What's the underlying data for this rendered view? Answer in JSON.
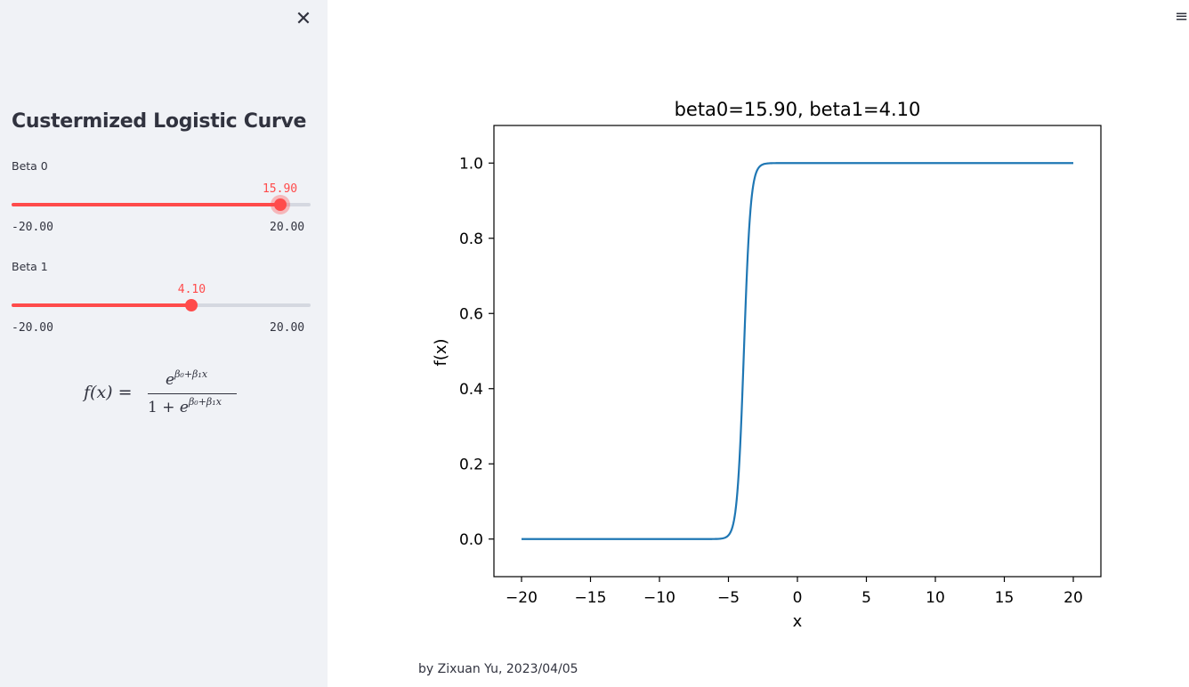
{
  "sidebar": {
    "close_icon": "close-icon",
    "title": "Custermized Logistic Curve",
    "sliders": [
      {
        "label": "Beta 0",
        "value": "15.90",
        "numeric_value": 15.9,
        "min_label": "-20.00",
        "max_label": "20.00",
        "min": -20,
        "max": 20
      },
      {
        "label": "Beta 1",
        "value": "4.10",
        "numeric_value": 4.1,
        "min_label": "-20.00",
        "max_label": "20.00",
        "min": -20,
        "max": 20
      }
    ],
    "formula": {
      "lhs": "f(x)",
      "eq": "=",
      "num_base": "e",
      "exponent": "β₀+β₁x",
      "den_prefix": "1 + ",
      "den_base": "e"
    }
  },
  "main": {
    "menu_icon": "hamburger-menu-icon",
    "footer": "by Zixuan Yu, 2023/04/05"
  },
  "chart_data": {
    "type": "line",
    "title": "beta0=15.90, beta1=4.10",
    "xlabel": "x",
    "ylabel": "f(x)",
    "xlim": [
      -22,
      22
    ],
    "ylim": [
      -0.1,
      1.1
    ],
    "xticks": [
      -20,
      -15,
      -10,
      -5,
      0,
      5,
      10,
      15,
      20
    ],
    "xtick_labels": [
      "−20",
      "−15",
      "−10",
      "−5",
      "0",
      "5",
      "10",
      "15",
      "20"
    ],
    "yticks": [
      0.0,
      0.2,
      0.4,
      0.6,
      0.8,
      1.0
    ],
    "ytick_labels": [
      "0.0",
      "0.2",
      "0.4",
      "0.6",
      "0.8",
      "1.0"
    ],
    "grid": false,
    "series": [
      {
        "color": "#1f77b4",
        "beta0": 15.9,
        "beta1": 4.1,
        "x_range": [
          -20,
          20
        ],
        "formula": "exp(beta0+beta1*x)/(1+exp(beta0+beta1*x))"
      }
    ]
  }
}
